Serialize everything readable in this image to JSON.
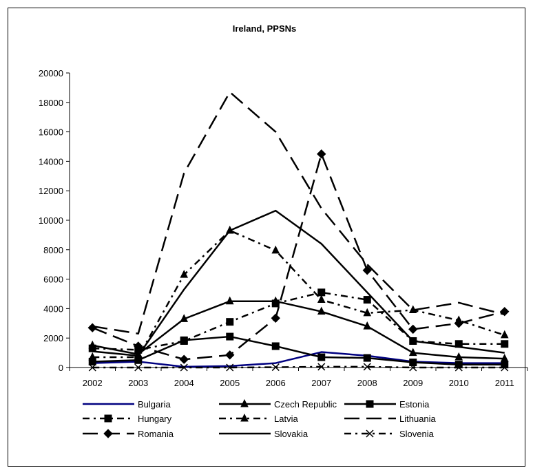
{
  "chart_data": {
    "type": "line",
    "title": "Ireland, PPSNs",
    "xlabel": "",
    "ylabel": "",
    "x": [
      "2002",
      "2003",
      "2004",
      "2005",
      "2006",
      "2007",
      "2008",
      "2009",
      "2010",
      "2011"
    ],
    "ylim": [
      0,
      20000
    ],
    "yticks": [
      0,
      2000,
      4000,
      6000,
      8000,
      10000,
      12000,
      14000,
      16000,
      18000,
      20000
    ],
    "grid": false,
    "legend": "bottom",
    "series": [
      {
        "name": "Bulgaria",
        "color": "#000080",
        "dash": "solid",
        "marker": "none",
        "values": [
          300,
          400,
          50,
          100,
          300,
          1050,
          800,
          400,
          300,
          300
        ]
      },
      {
        "name": "Czech Republic",
        "color": "#000000",
        "dash": "solid",
        "marker": "triangle",
        "values": [
          1500,
          900,
          3300,
          4500,
          4500,
          3800,
          2800,
          1000,
          700,
          600
        ]
      },
      {
        "name": "Estonia",
        "color": "#000000",
        "dash": "solid",
        "marker": "square",
        "values": [
          400,
          500,
          1850,
          2100,
          1450,
          700,
          650,
          350,
          200,
          200
        ]
      },
      {
        "name": "Hungary",
        "color": "#000000",
        "dash": "dashdot",
        "marker": "square",
        "values": [
          1300,
          1200,
          1800,
          3100,
          4350,
          5100,
          4600,
          1800,
          1600,
          1600
        ]
      },
      {
        "name": "Latvia",
        "color": "#000000",
        "dash": "dashdot",
        "marker": "triangle",
        "values": [
          700,
          700,
          6300,
          9300,
          7950,
          4600,
          3700,
          3900,
          3200,
          2200
        ]
      },
      {
        "name": "Lithuania",
        "color": "#000000",
        "dash": "longdash",
        "marker": "none",
        "values": [
          2800,
          2300,
          13200,
          18700,
          16000,
          10800,
          7000,
          3900,
          4400,
          3600
        ]
      },
      {
        "name": "Romania",
        "color": "#000000",
        "dash": "longdash",
        "marker": "diamond",
        "values": [
          2700,
          1450,
          550,
          850,
          3350,
          14500,
          6600,
          2600,
          3000,
          3800
        ]
      },
      {
        "name": "Slovakia",
        "color": "#000000",
        "dash": "solid",
        "marker": "none",
        "values": [
          1100,
          800,
          5300,
          9300,
          10650,
          8400,
          5100,
          1800,
          1400,
          1000
        ]
      },
      {
        "name": "Slovenia",
        "color": "#000000",
        "dash": "dashdot",
        "marker": "x",
        "values": [
          0,
          0,
          0,
          0,
          20,
          50,
          50,
          0,
          0,
          0
        ]
      }
    ]
  }
}
